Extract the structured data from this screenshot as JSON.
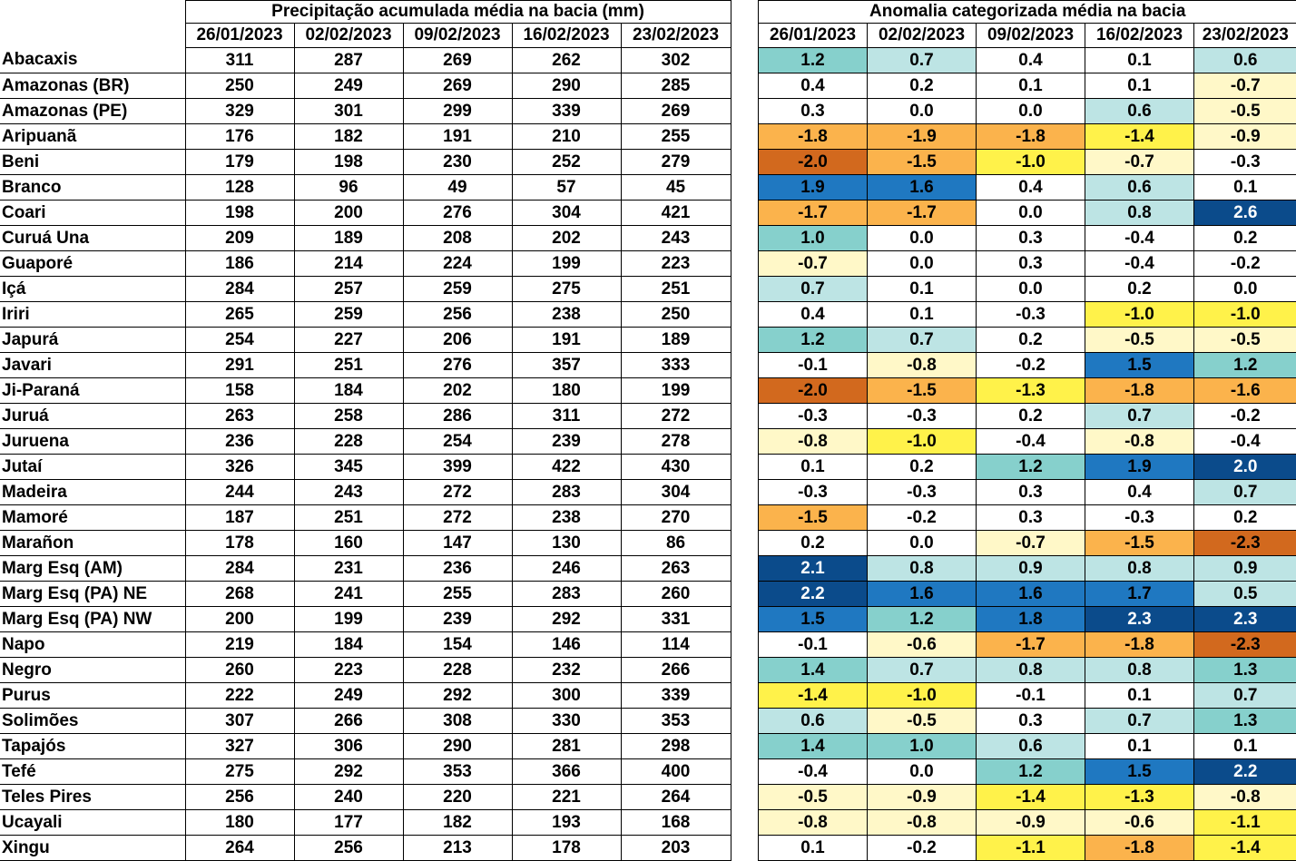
{
  "precip_title": "Precipitação acumulada média na bacia (mm)",
  "anom_title": "Anomalia categorizada média na bacia",
  "dates": [
    "26/01/2023",
    "02/02/2023",
    "09/02/2023",
    "16/02/2023",
    "23/02/2023"
  ],
  "anomaly_colors": {
    "le_-2.0": "#d2691e",
    "-1.9_to_-1.5": "#fbb34c",
    "-1.4_to_-1.0": "#fff24a",
    "-0.9_to_-0.5": "#fff8c8",
    "-0.4_to_0.4": "#ffffff",
    "0.5_to_0.9": "#bde4e4",
    "1.0_to_1.4": "#86d0cc",
    "1.5_to_1.9": "#1f78c1",
    "ge_2.0": "#0b4b8b"
  },
  "rows": [
    {
      "name": "Abacaxis",
      "precip": [
        "311",
        "287",
        "269",
        "262",
        "302"
      ],
      "anom": [
        "1.2",
        "0.7",
        "0.4",
        "0.1",
        "0.6"
      ]
    },
    {
      "name": "Amazonas (BR)",
      "precip": [
        "250",
        "249",
        "269",
        "290",
        "285"
      ],
      "anom": [
        "0.4",
        "0.2",
        "0.1",
        "0.1",
        "-0.7"
      ]
    },
    {
      "name": "Amazonas (PE)",
      "precip": [
        "329",
        "301",
        "299",
        "339",
        "269"
      ],
      "anom": [
        "0.3",
        "0.0",
        "0.0",
        "0.6",
        "-0.5"
      ]
    },
    {
      "name": "Aripuanã",
      "precip": [
        "176",
        "182",
        "191",
        "210",
        "255"
      ],
      "anom": [
        "-1.8",
        "-1.9",
        "-1.8",
        "-1.4",
        "-0.9"
      ]
    },
    {
      "name": "Beni",
      "precip": [
        "179",
        "198",
        "230",
        "252",
        "279"
      ],
      "anom": [
        "-2.0",
        "-1.5",
        "-1.0",
        "-0.7",
        "-0.3"
      ]
    },
    {
      "name": "Branco",
      "precip": [
        "128",
        "96",
        "49",
        "57",
        "45"
      ],
      "anom": [
        "1.9",
        "1.6",
        "0.4",
        "0.6",
        "0.1"
      ]
    },
    {
      "name": "Coari",
      "precip": [
        "198",
        "200",
        "276",
        "304",
        "421"
      ],
      "anom": [
        "-1.7",
        "-1.7",
        "0.0",
        "0.8",
        "2.6"
      ]
    },
    {
      "name": "Curuá Una",
      "precip": [
        "209",
        "189",
        "208",
        "202",
        "243"
      ],
      "anom": [
        "1.0",
        "0.0",
        "0.3",
        "-0.4",
        "0.2"
      ]
    },
    {
      "name": "Guaporé",
      "precip": [
        "186",
        "214",
        "224",
        "199",
        "223"
      ],
      "anom": [
        "-0.7",
        "0.0",
        "0.3",
        "-0.4",
        "-0.2"
      ]
    },
    {
      "name": "Içá",
      "precip": [
        "284",
        "257",
        "259",
        "275",
        "251"
      ],
      "anom": [
        "0.7",
        "0.1",
        "0.0",
        "0.2",
        "0.0"
      ]
    },
    {
      "name": "Iriri",
      "precip": [
        "265",
        "259",
        "256",
        "238",
        "250"
      ],
      "anom": [
        "0.4",
        "0.1",
        "-0.3",
        "-1.0",
        "-1.0"
      ]
    },
    {
      "name": "Japurá",
      "precip": [
        "254",
        "227",
        "206",
        "191",
        "189"
      ],
      "anom": [
        "1.2",
        "0.7",
        "0.2",
        "-0.5",
        "-0.5"
      ]
    },
    {
      "name": "Javari",
      "precip": [
        "291",
        "251",
        "276",
        "357",
        "333"
      ],
      "anom": [
        "-0.1",
        "-0.8",
        "-0.2",
        "1.5",
        "1.2"
      ]
    },
    {
      "name": "Ji-Paraná",
      "precip": [
        "158",
        "184",
        "202",
        "180",
        "199"
      ],
      "anom": [
        "-2.0",
        "-1.5",
        "-1.3",
        "-1.8",
        "-1.6"
      ]
    },
    {
      "name": "Juruá",
      "precip": [
        "263",
        "258",
        "286",
        "311",
        "272"
      ],
      "anom": [
        "-0.3",
        "-0.3",
        "0.2",
        "0.7",
        "-0.2"
      ]
    },
    {
      "name": "Juruena",
      "precip": [
        "236",
        "228",
        "254",
        "239",
        "278"
      ],
      "anom": [
        "-0.8",
        "-1.0",
        "-0.4",
        "-0.8",
        "-0.4"
      ]
    },
    {
      "name": "Jutaí",
      "precip": [
        "326",
        "345",
        "399",
        "422",
        "430"
      ],
      "anom": [
        "0.1",
        "0.2",
        "1.2",
        "1.9",
        "2.0"
      ]
    },
    {
      "name": "Madeira",
      "precip": [
        "244",
        "243",
        "272",
        "283",
        "304"
      ],
      "anom": [
        "-0.3",
        "-0.3",
        "0.3",
        "0.4",
        "0.7"
      ]
    },
    {
      "name": "Mamoré",
      "precip": [
        "187",
        "251",
        "272",
        "238",
        "270"
      ],
      "anom": [
        "-1.5",
        "-0.2",
        "0.3",
        "-0.3",
        "0.2"
      ]
    },
    {
      "name": "Marañon",
      "precip": [
        "178",
        "160",
        "147",
        "130",
        "86"
      ],
      "anom": [
        "0.2",
        "0.0",
        "-0.7",
        "-1.5",
        "-2.3"
      ]
    },
    {
      "name": "Marg Esq (AM)",
      "precip": [
        "284",
        "231",
        "236",
        "246",
        "263"
      ],
      "anom": [
        "2.1",
        "0.8",
        "0.9",
        "0.8",
        "0.9"
      ]
    },
    {
      "name": "Marg Esq (PA) NE",
      "precip": [
        "268",
        "241",
        "255",
        "283",
        "260"
      ],
      "anom": [
        "2.2",
        "1.6",
        "1.6",
        "1.7",
        "0.5"
      ]
    },
    {
      "name": "Marg Esq (PA) NW",
      "precip": [
        "200",
        "199",
        "239",
        "292",
        "331"
      ],
      "anom": [
        "1.5",
        "1.2",
        "1.8",
        "2.3",
        "2.3"
      ]
    },
    {
      "name": "Napo",
      "precip": [
        "219",
        "184",
        "154",
        "146",
        "114"
      ],
      "anom": [
        "-0.1",
        "-0.6",
        "-1.7",
        "-1.8",
        "-2.3"
      ]
    },
    {
      "name": "Negro",
      "precip": [
        "260",
        "223",
        "228",
        "232",
        "266"
      ],
      "anom": [
        "1.4",
        "0.7",
        "0.8",
        "0.8",
        "1.3"
      ]
    },
    {
      "name": "Purus",
      "precip": [
        "222",
        "249",
        "292",
        "300",
        "339"
      ],
      "anom": [
        "-1.4",
        "-1.0",
        "-0.1",
        "0.1",
        "0.7"
      ]
    },
    {
      "name": "Solimões",
      "precip": [
        "307",
        "266",
        "308",
        "330",
        "353"
      ],
      "anom": [
        "0.6",
        "-0.5",
        "0.3",
        "0.7",
        "1.3"
      ]
    },
    {
      "name": "Tapajós",
      "precip": [
        "327",
        "306",
        "290",
        "281",
        "298"
      ],
      "anom": [
        "1.4",
        "1.0",
        "0.6",
        "0.1",
        "0.1"
      ]
    },
    {
      "name": "Tefé",
      "precip": [
        "275",
        "292",
        "353",
        "366",
        "400"
      ],
      "anom": [
        "-0.4",
        "0.0",
        "1.2",
        "1.5",
        "2.2"
      ]
    },
    {
      "name": "Teles Pires",
      "precip": [
        "256",
        "240",
        "220",
        "221",
        "264"
      ],
      "anom": [
        "-0.5",
        "-0.9",
        "-1.4",
        "-1.3",
        "-0.8"
      ]
    },
    {
      "name": "Ucayali",
      "precip": [
        "180",
        "177",
        "182",
        "193",
        "168"
      ],
      "anom": [
        "-0.8",
        "-0.8",
        "-0.9",
        "-0.6",
        "-1.1"
      ]
    },
    {
      "name": "Xingu",
      "precip": [
        "264",
        "256",
        "213",
        "178",
        "203"
      ],
      "anom": [
        "0.1",
        "-0.2",
        "-1.1",
        "-1.8",
        "-1.4"
      ]
    }
  ]
}
